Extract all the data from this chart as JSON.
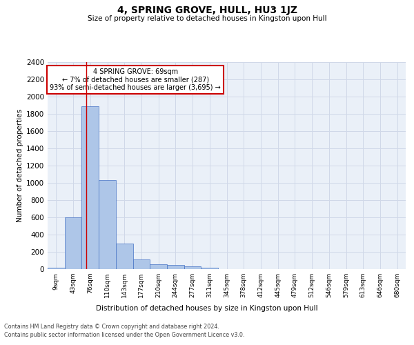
{
  "title": "4, SPRING GROVE, HULL, HU3 1JZ",
  "subtitle": "Size of property relative to detached houses in Kingston upon Hull",
  "xlabel": "Distribution of detached houses by size in Kingston upon Hull",
  "ylabel": "Number of detached properties",
  "footer_line1": "Contains HM Land Registry data © Crown copyright and database right 2024.",
  "footer_line2": "Contains public sector information licensed under the Open Government Licence v3.0.",
  "bin_labels": [
    "9sqm",
    "43sqm",
    "76sqm",
    "110sqm",
    "143sqm",
    "177sqm",
    "210sqm",
    "244sqm",
    "277sqm",
    "311sqm",
    "345sqm",
    "378sqm",
    "412sqm",
    "445sqm",
    "479sqm",
    "512sqm",
    "546sqm",
    "579sqm",
    "613sqm",
    "646sqm",
    "680sqm"
  ],
  "bar_values": [
    20,
    600,
    1890,
    1035,
    295,
    115,
    55,
    47,
    33,
    20,
    0,
    0,
    0,
    0,
    0,
    0,
    0,
    0,
    0,
    0,
    0
  ],
  "bar_color": "#aec6e8",
  "bar_edge_color": "#4472c4",
  "grid_color": "#d0d8e8",
  "background_color": "#eaf0f8",
  "red_line_x": 1.75,
  "annotation_text": "4 SPRING GROVE: 69sqm\n← 7% of detached houses are smaller (287)\n93% of semi-detached houses are larger (3,695) →",
  "annotation_box_color": "#ffffff",
  "annotation_box_edge_color": "#cc0000",
  "annotation_text_color": "#000000",
  "ylim": [
    0,
    2400
  ],
  "yticks": [
    0,
    200,
    400,
    600,
    800,
    1000,
    1200,
    1400,
    1600,
    1800,
    2000,
    2200,
    2400
  ]
}
